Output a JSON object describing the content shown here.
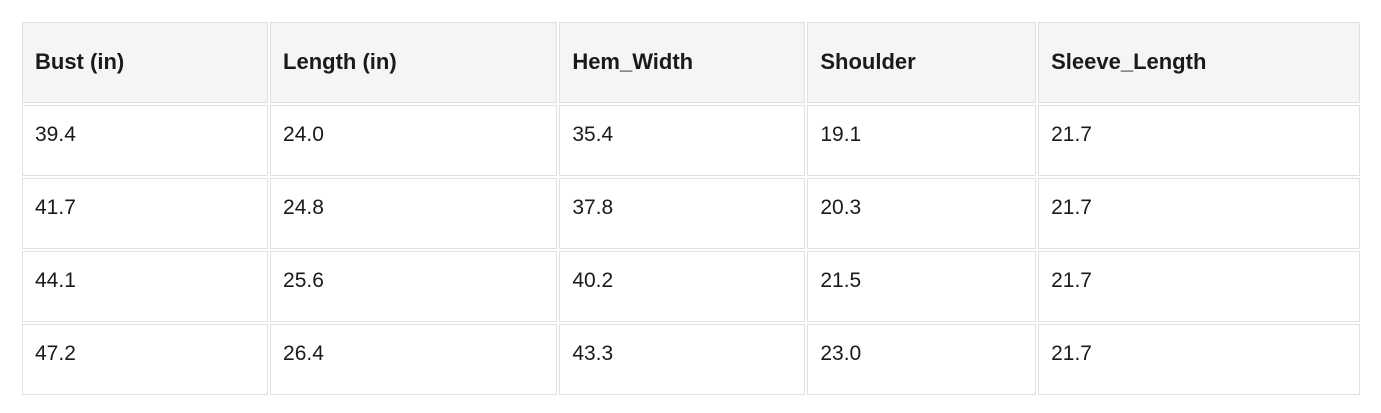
{
  "table": {
    "columns": [
      "Bust (in)",
      "Length (in)",
      "Hem_Width",
      "Shoulder",
      "Sleeve_Length"
    ],
    "rows": [
      [
        "39.4",
        "24.0",
        "35.4",
        "19.1",
        "21.7"
      ],
      [
        "41.7",
        "24.8",
        "37.8",
        "20.3",
        "21.7"
      ],
      [
        "44.1",
        "25.6",
        "40.2",
        "21.5",
        "21.7"
      ],
      [
        "47.2",
        "26.4",
        "43.3",
        "23.0",
        "21.7"
      ]
    ]
  },
  "chart_data": {
    "type": "table",
    "title": "",
    "columns": [
      "Bust (in)",
      "Length (in)",
      "Hem_Width",
      "Shoulder",
      "Sleeve_Length"
    ],
    "rows": [
      [
        39.4,
        24.0,
        35.4,
        19.1,
        21.7
      ],
      [
        41.7,
        24.8,
        37.8,
        20.3,
        21.7
      ],
      [
        44.1,
        25.6,
        40.2,
        21.5,
        21.7
      ],
      [
        47.2,
        26.4,
        43.3,
        23.0,
        21.7
      ]
    ]
  },
  "colors": {
    "header_background": "#f5f5f5",
    "cell_border": "#e0e0e0",
    "text": "#1a1a1a",
    "page_background": "#ffffff"
  }
}
